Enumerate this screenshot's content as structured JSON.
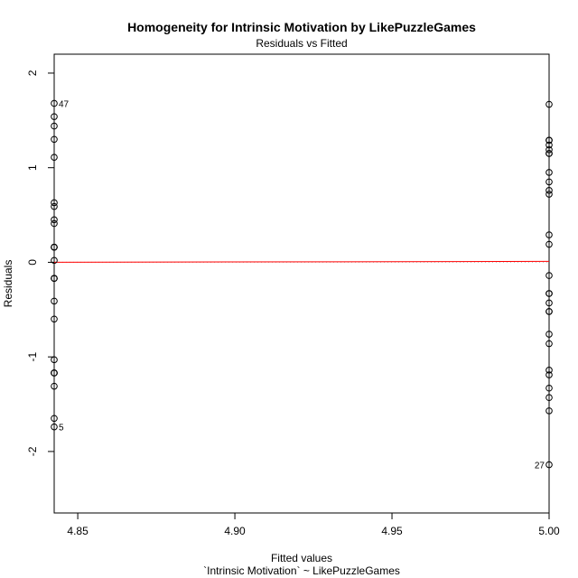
{
  "chart_data": {
    "type": "scatter",
    "title": "Homogeneity for Intrinsic Motivation by LikePuzzleGames",
    "subtitle": "Residuals vs Fitted",
    "xlabel": "Fitted values",
    "xlabel2": "`Intrinsic Motivation` ~ LikePuzzleGames",
    "ylabel": "Residuals",
    "xlim": [
      4.8425,
      5.0
    ],
    "ylim": [
      -2.65,
      2.2
    ],
    "xticks": [
      "4.85",
      "4.90",
      "4.95",
      "5.00"
    ],
    "yticks": [
      "-2",
      "-1",
      "0",
      "1",
      "2"
    ],
    "grid": false,
    "reference_line": {
      "y": 0,
      "style": "dotted",
      "color": "#bbbbbb"
    },
    "smooth_line": {
      "color": "#ff0000",
      "x": [
        4.8425,
        5.0
      ],
      "y": [
        0.0,
        0.01
      ]
    },
    "series": [
      {
        "x_value": 4.8425,
        "y": [
          1.68,
          1.54,
          1.44,
          1.3,
          1.11,
          0.63,
          0.59,
          0.45,
          0.41,
          0.16,
          0.16,
          0.16,
          0.02,
          -0.17,
          -0.17,
          -0.17,
          -0.41,
          -0.6,
          -1.03,
          -1.17,
          -1.17,
          -1.17,
          -1.31,
          -1.65,
          -1.74
        ]
      },
      {
        "x_value": 5.0,
        "y": [
          1.67,
          1.29,
          1.29,
          1.24,
          1.19,
          1.15,
          1.15,
          0.95,
          0.85,
          0.76,
          0.72,
          0.29,
          0.19,
          -0.14,
          -0.33,
          -0.33,
          -0.43,
          -0.52,
          -0.52,
          -0.76,
          -0.86,
          -1.14,
          -1.19,
          -1.33,
          -1.43,
          -1.57,
          -2.14
        ]
      }
    ],
    "point_labels": [
      {
        "text": "47",
        "x": 4.8425,
        "y": 1.68,
        "side": "right"
      },
      {
        "text": "5",
        "x": 4.8425,
        "y": -1.74,
        "side": "right"
      },
      {
        "text": "27",
        "x": 5.0,
        "y": -2.14,
        "side": "left"
      }
    ]
  }
}
